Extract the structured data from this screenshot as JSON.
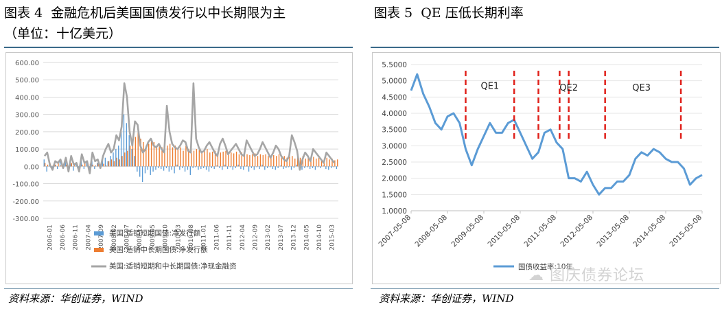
{
  "left": {
    "title": "图表 4  金融危机后美国国债发行以中长期限为主",
    "subtitle": "（单位：十亿美元）",
    "source": "资料来源：华创证券，WIND",
    "chart_data": {
      "type": "bar",
      "ylim": [
        -300,
        600
      ],
      "yticks": [
        "600.00",
        "500.00",
        "400.00",
        "300.00",
        "200.00",
        "100.00",
        "0.00",
        "-100.00",
        "-200.00",
        "-300.00"
      ],
      "xticks": [
        "2006-01",
        "2006-06",
        "2006-11",
        "2007-04",
        "2007-09",
        "2008-02",
        "2008-07",
        "2008-12",
        "2009-05",
        "2009-10",
        "2010-03",
        "2010-08",
        "2011-01",
        "2011-06",
        "2011-11",
        "2012-04",
        "2012-09",
        "2013-02",
        "2013-07",
        "2013-12",
        "2014-05",
        "2014-10",
        "2015-03"
      ],
      "legend": [
        "美国:适销短期国债:净发行额",
        "美国:适销中长期国债:净发行额",
        "美国:适销短期和中长期国债:净现金融资"
      ],
      "series": [
        {
          "name": "美国:适销短期国债:净发行额",
          "color": "#5b9bd5",
          "values": [
            40,
            -30,
            20,
            -20,
            10,
            -15,
            30,
            -10,
            25,
            -20,
            15,
            -25,
            20,
            -10,
            35,
            -15,
            25,
            -20,
            30,
            -15,
            20,
            -10,
            40,
            50,
            30,
            60,
            80,
            100,
            120,
            200,
            300,
            250,
            180,
            100,
            60,
            -30,
            -60,
            -90,
            -40,
            -20,
            -50,
            -30,
            -20,
            -10,
            -15,
            -25,
            -10,
            -30,
            -20,
            -40,
            10,
            -20,
            -10,
            -30,
            -20,
            -50,
            -10,
            -5,
            -20,
            -15,
            -10,
            -20,
            -30,
            -10,
            -15,
            5,
            -10,
            -20,
            10,
            -15,
            -5,
            -20,
            -10,
            10,
            -15,
            -20,
            5,
            -30,
            -10,
            -20,
            -5,
            -15,
            10,
            -20,
            -10,
            -5,
            -15,
            -20,
            -10,
            5,
            -15,
            -10,
            -5,
            -20,
            -10,
            10,
            -15,
            -20,
            -10,
            -5,
            -15,
            -10,
            -20,
            -5,
            -10,
            5,
            -15,
            -20,
            -10,
            -5,
            -15
          ]
        },
        {
          "name": "美国:适销中长期国债:净发行额",
          "color": "#ed7d31",
          "values": [
            20,
            10,
            15,
            5,
            10,
            20,
            5,
            15,
            10,
            5,
            20,
            10,
            15,
            5,
            10,
            20,
            5,
            15,
            10,
            5,
            20,
            10,
            15,
            5,
            30,
            40,
            30,
            50,
            40,
            60,
            80,
            90,
            120,
            150,
            170,
            210,
            160,
            140,
            120,
            130,
            150,
            140,
            120,
            130,
            110,
            100,
            120,
            130,
            110,
            120,
            100,
            110,
            90,
            120,
            100,
            110,
            90,
            100,
            95,
            80,
            90,
            100,
            80,
            85,
            90,
            75,
            80,
            85,
            90,
            70,
            80,
            75,
            85,
            70,
            80,
            75,
            70,
            65,
            70,
            75,
            60,
            70,
            65,
            70,
            60,
            55,
            65,
            60,
            70,
            55,
            60,
            50,
            55,
            60,
            45,
            55,
            50,
            60,
            45,
            50,
            40,
            55,
            45,
            50,
            40,
            45,
            50,
            40,
            45,
            35,
            40
          ]
        },
        {
          "name": "美国:适销短期和中长期国债:净现金融资",
          "color": "#a5a5a5",
          "values": [
            60,
            80,
            10,
            -20,
            30,
            20,
            40,
            -10,
            50,
            -30,
            60,
            10,
            20,
            -30,
            70,
            20,
            30,
            -40,
            80,
            30,
            40,
            -10,
            60,
            100,
            130,
            80,
            100,
            180,
            150,
            230,
            480,
            400,
            200,
            120,
            260,
            240,
            120,
            80,
            100,
            140,
            160,
            120,
            110,
            130,
            100,
            80,
            350,
            200,
            130,
            110,
            100,
            120,
            150,
            140,
            90,
            80,
            480,
            160,
            110,
            80,
            90,
            120,
            140,
            110,
            80,
            60,
            130,
            160,
            120,
            70,
            90,
            110,
            130,
            100,
            70,
            60,
            150,
            120,
            90,
            60,
            70,
            100,
            140,
            110,
            80,
            50,
            80,
            120,
            100,
            60,
            40,
            30,
            60,
            180,
            140,
            90,
            -20,
            40,
            80,
            60,
            30,
            100,
            80,
            60,
            40,
            20,
            80,
            60,
            40,
            20
          ]
        }
      ]
    }
  },
  "right": {
    "title": "图表 5  QE 压低长期利率",
    "source": "资料来源：华创证券，WIND",
    "watermark": "图庆债券论坛",
    "chart_data": {
      "type": "line",
      "ylim": [
        1.0,
        5.5
      ],
      "yticks": [
        "5.5000",
        "5.0000",
        "4.5000",
        "4.0000",
        "3.5000",
        "3.0000",
        "2.5000",
        "2.0000",
        "1.5000",
        "1.0000"
      ],
      "xticks": [
        "2007-05-08",
        "2008-05-08",
        "2009-05-08",
        "2010-05-08",
        "2011-05-08",
        "2012-05-08",
        "2013-05-08",
        "2014-05-08",
        "2015-05-08"
      ],
      "legend": "国债收益率:10年",
      "annotations": [
        "QE1",
        "QE2",
        "QE3"
      ],
      "x": [
        "2007-05",
        "2007-07",
        "2007-09",
        "2007-11",
        "2008-01",
        "2008-03",
        "2008-05",
        "2008-07",
        "2008-09",
        "2008-11",
        "2009-01",
        "2009-03",
        "2009-05",
        "2009-07",
        "2009-09",
        "2009-11",
        "2010-01",
        "2010-03",
        "2010-05",
        "2010-07",
        "2010-09",
        "2010-11",
        "2011-01",
        "2011-03",
        "2011-05",
        "2011-07",
        "2011-09",
        "2011-11",
        "2012-01",
        "2012-03",
        "2012-05",
        "2012-07",
        "2012-09",
        "2012-11",
        "2013-01",
        "2013-03",
        "2013-05",
        "2013-07",
        "2013-09",
        "2013-11",
        "2014-01",
        "2014-03",
        "2014-05",
        "2014-07",
        "2014-09",
        "2014-11",
        "2015-01",
        "2015-03",
        "2015-05"
      ],
      "values": [
        4.7,
        5.2,
        4.6,
        4.2,
        3.7,
        3.5,
        3.9,
        4.0,
        3.7,
        2.9,
        2.4,
        2.9,
        3.3,
        3.7,
        3.4,
        3.4,
        3.7,
        3.8,
        3.4,
        3.0,
        2.6,
        2.8,
        3.4,
        3.5,
        3.1,
        2.9,
        2.0,
        2.0,
        1.9,
        2.2,
        1.8,
        1.5,
        1.7,
        1.7,
        1.9,
        1.9,
        2.1,
        2.6,
        2.8,
        2.7,
        2.9,
        2.8,
        2.6,
        2.5,
        2.5,
        2.3,
        1.8,
        2.0,
        2.1
      ],
      "qe_lines": [
        "2008-11",
        "2010-03",
        "2010-11",
        "2011-06",
        "2011-09",
        "2012-09",
        "2014-10"
      ]
    }
  }
}
